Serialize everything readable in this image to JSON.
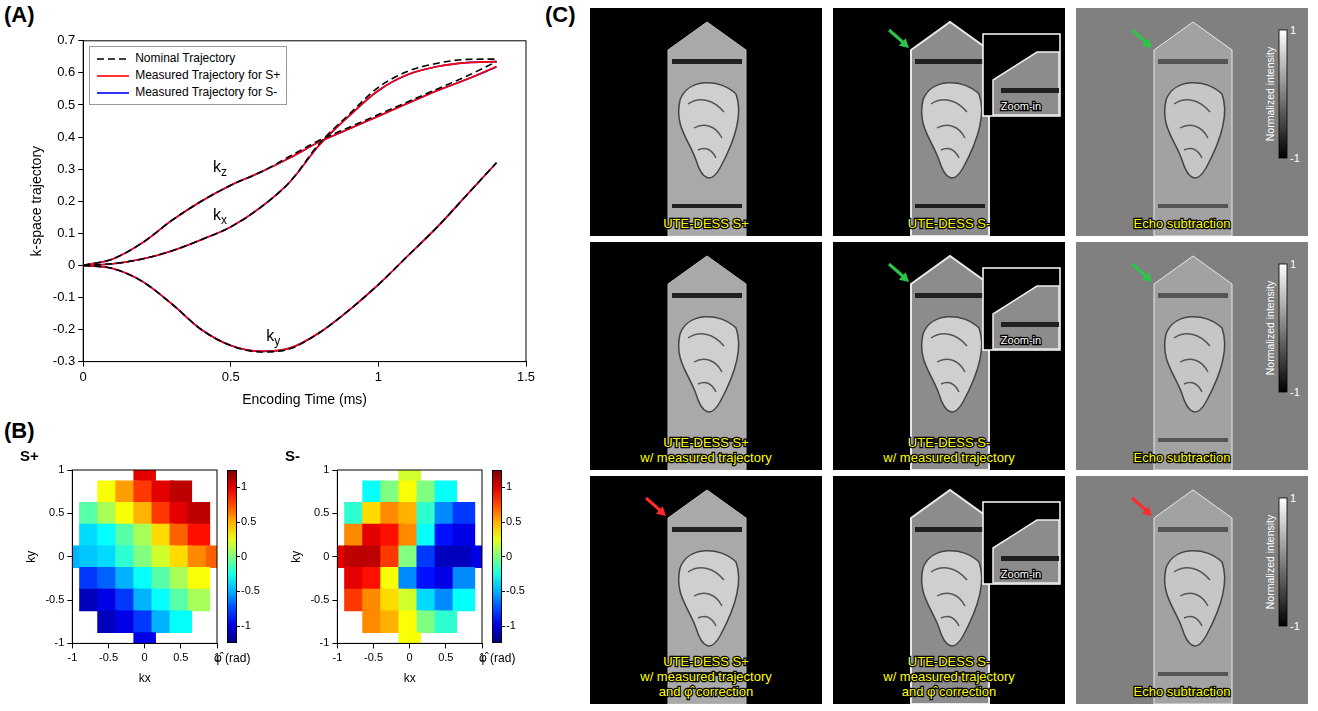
{
  "panel_labels": [
    "(A)",
    "(B)",
    "(C)"
  ],
  "chart_data": [
    {
      "type": "line",
      "xlabel": "Encoding Time (ms)",
      "ylabel": "k-space trajectory",
      "x": [
        0,
        0.1,
        0.2,
        0.3,
        0.4,
        0.5,
        0.6,
        0.7,
        0.8,
        0.9,
        1,
        1.1,
        1.2,
        1.3,
        1.4
      ],
      "xlim": [
        0,
        1.5
      ],
      "xticks": [
        0,
        0.5,
        1,
        1.5
      ],
      "ylim": [
        -0.3,
        0.7
      ],
      "yticks": [
        -0.3,
        -0.2,
        -0.1,
        0,
        0.1,
        0.2,
        0.3,
        0.4,
        0.5,
        0.6,
        0.7
      ],
      "grid": false,
      "legend": "upper left",
      "series": [
        {
          "name": "Nominal Trajectory",
          "color": "#000000",
          "line_style": "dashed",
          "curves": {
            "kx": [
              0,
              0.005,
              0.02,
              0.045,
              0.08,
              0.12,
              0.18,
              0.26,
              0.38,
              0.47,
              0.555,
              0.605,
              0.63,
              0.642,
              0.643
            ],
            "ky": [
              0,
              -0.01,
              -0.05,
              -0.12,
              -0.2,
              -0.25,
              -0.27,
              -0.26,
              -0.21,
              -0.14,
              -0.06,
              0.03,
              0.12,
              0.22,
              0.32
            ],
            "kz": [
              0,
              0.02,
              0.07,
              0.14,
              0.2,
              0.25,
              0.29,
              0.34,
              0.39,
              0.43,
              0.47,
              0.51,
              0.55,
              0.59,
              0.635
            ]
          }
        },
        {
          "name": "Measured Trajectory for S+",
          "color": "#ff0000",
          "line_style": "solid",
          "curves": {
            "kx": [
              0,
              0.005,
              0.02,
              0.045,
              0.08,
              0.12,
              0.18,
              0.26,
              0.375,
              0.465,
              0.545,
              0.595,
              0.62,
              0.632,
              0.635
            ],
            "ky": [
              0,
              -0.01,
              -0.05,
              -0.12,
              -0.2,
              -0.25,
              -0.268,
              -0.258,
              -0.21,
              -0.14,
              -0.06,
              0.03,
              0.12,
              0.22,
              0.32
            ],
            "kz": [
              0,
              0.02,
              0.07,
              0.14,
              0.2,
              0.25,
              0.29,
              0.335,
              0.385,
              0.425,
              0.465,
              0.505,
              0.545,
              0.58,
              0.62
            ]
          }
        },
        {
          "name": "Measured Trajectory for S-",
          "color": "#0000ff",
          "line_style": "solid",
          "curves": {
            "kx": [
              0,
              0.005,
              0.02,
              0.045,
              0.08,
              0.12,
              0.18,
              0.26,
              0.375,
              0.465,
              0.545,
              0.595,
              0.62,
              0.632,
              0.635
            ],
            "ky": [
              0,
              -0.01,
              -0.05,
              -0.12,
              -0.2,
              -0.25,
              -0.268,
              -0.258,
              -0.21,
              -0.14,
              -0.06,
              0.03,
              0.12,
              0.22,
              0.32
            ],
            "kz": [
              0,
              0.02,
              0.07,
              0.14,
              0.2,
              0.25,
              0.29,
              0.335,
              0.385,
              0.425,
              0.465,
              0.505,
              0.545,
              0.58,
              0.618
            ]
          }
        }
      ],
      "annotations": [
        {
          "text": "kz",
          "x": 0.44,
          "y": 0.29
        },
        {
          "text": "kx",
          "x": 0.44,
          "y": 0.14
        },
        {
          "text": "ky",
          "x": 0.62,
          "y": -0.235
        }
      ]
    },
    {
      "type": "heatmap",
      "title": "S+",
      "xlabel": "kx",
      "ylabel": "ky",
      "x": [
        -1,
        -0.75,
        -0.5,
        -0.25,
        0,
        0.25,
        0.5,
        0.75,
        1
      ],
      "y": [
        1,
        0.75,
        0.5,
        0.25,
        0,
        -0.25,
        -0.5,
        -0.75,
        -1
      ],
      "cells": [
        [
          null,
          null,
          null,
          null,
          1,
          null,
          null,
          null,
          null
        ],
        [
          null,
          null,
          0.3,
          0.55,
          0.8,
          1,
          1.1,
          null,
          null
        ],
        [
          null,
          -0.1,
          0.1,
          0.3,
          0.5,
          0.8,
          1,
          1.1,
          null
        ],
        [
          null,
          -0.4,
          -0.3,
          -0.1,
          0.1,
          0.4,
          0.7,
          0.9,
          null
        ],
        [
          -0.5,
          -0.45,
          -0.4,
          -0.2,
          0,
          0.2,
          0.4,
          0.6,
          0.7
        ],
        [
          null,
          -0.8,
          -0.7,
          -0.5,
          -0.3,
          -0.1,
          0.1,
          0.3,
          null
        ],
        [
          null,
          -1.1,
          -1,
          -0.8,
          -0.5,
          -0.3,
          -0.1,
          0.1,
          null
        ],
        [
          null,
          null,
          -1.1,
          -1,
          -0.8,
          -0.5,
          -0.3,
          null,
          null
        ],
        [
          null,
          null,
          null,
          null,
          -1,
          null,
          null,
          null,
          null
        ]
      ],
      "xlim": [
        -1,
        1
      ],
      "xticks": [
        -1,
        -0.5,
        0,
        0.5,
        1
      ],
      "ylim": [
        -1,
        1
      ],
      "yticks": [
        -1,
        -0.5,
        0,
        0.5,
        1
      ],
      "colorbar": {
        "label": "φ̂ (rad)",
        "range": [
          -1.25,
          1.25
        ],
        "ticks": [
          -1,
          -0.5,
          0,
          0.5,
          1
        ]
      }
    },
    {
      "type": "heatmap",
      "title": "S-",
      "xlabel": "kx",
      "ylabel": "ky",
      "x": [
        -1,
        -0.75,
        -0.5,
        -0.25,
        0,
        0.25,
        0.5,
        0.75,
        1
      ],
      "y": [
        1,
        0.75,
        0.5,
        0.25,
        0,
        -0.25,
        -0.5,
        -0.75,
        -1
      ],
      "cells": [
        [
          null,
          null,
          null,
          null,
          0.2,
          null,
          null,
          null,
          null
        ],
        [
          null,
          null,
          -0.3,
          0,
          0.3,
          0,
          -0.3,
          null,
          null
        ],
        [
          null,
          -0.2,
          0.4,
          0.6,
          0.5,
          -0.2,
          -0.6,
          -0.8,
          null
        ],
        [
          null,
          0.6,
          1,
          0.9,
          0.6,
          -0.3,
          -0.9,
          -1,
          null
        ],
        [
          1,
          1.1,
          1.1,
          0.8,
          0,
          -0.8,
          -1.1,
          -1.1,
          -1
        ],
        [
          null,
          1,
          0.9,
          0.3,
          -0.6,
          -0.9,
          -1,
          -0.6,
          null
        ],
        [
          null,
          0.8,
          0.6,
          0.4,
          0.2,
          -0.4,
          -0.6,
          -0.3,
          null
        ],
        [
          null,
          null,
          0.6,
          0.5,
          0.3,
          0,
          -0.2,
          null,
          null
        ],
        [
          null,
          null,
          null,
          null,
          0.3,
          null,
          null,
          null,
          null
        ]
      ],
      "xlim": [
        -1,
        1
      ],
      "xticks": [
        -1,
        -0.5,
        0,
        0.5,
        1
      ],
      "ylim": [
        -1,
        1
      ],
      "yticks": [
        -1,
        -0.5,
        0,
        0.5,
        1
      ],
      "colorbar": {
        "label": "φ̂ (rad)",
        "range": [
          -1.25,
          1.25
        ],
        "ticks": [
          -1,
          -0.5,
          0,
          0.5,
          1
        ]
      }
    }
  ],
  "panel_c": {
    "colorbar": {
      "label": "Normalized intensity",
      "range": [
        -1,
        1
      ],
      "ticks": [
        -1,
        1
      ]
    },
    "rows": [
      [
        {
          "label": [
            "UTE-DESS S+"
          ]
        },
        {
          "label": [
            "UTE-DESS S-"
          ],
          "inset": "Zoom-in",
          "arrow": "green"
        },
        {
          "label": [
            "Echo subtraction"
          ],
          "arrow": "green",
          "colorbar": true
        }
      ],
      [
        {
          "label": [
            "UTE-DESS S+",
            "w/ measured trajectory"
          ]
        },
        {
          "label": [
            "UTE-DESS S-",
            "w/ measured trajectory"
          ],
          "inset": "Zoom-in",
          "arrow": "green"
        },
        {
          "label": [
            "Echo subtraction"
          ],
          "arrow": "green",
          "colorbar": true
        }
      ],
      [
        {
          "label": [
            "UTE-DESS S+",
            "w/ measured trajectory",
            "and φ̂ correction"
          ],
          "arrow": "red"
        },
        {
          "label": [
            "UTE-DESS S-",
            "w/ measured trajectory",
            "and φ̂ correction"
          ],
          "inset": "Zoom-in"
        },
        {
          "label": [
            "Echo subtraction"
          ],
          "arrow": "red",
          "colorbar": true
        }
      ]
    ]
  }
}
